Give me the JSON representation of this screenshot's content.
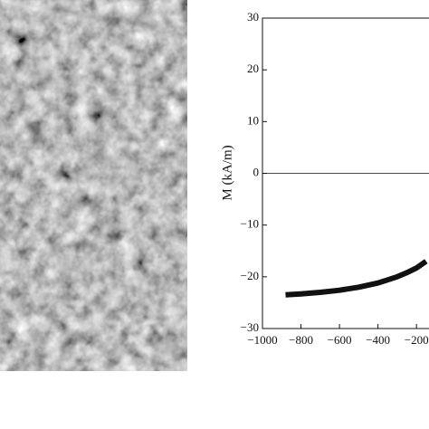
{
  "chart_data": {
    "type": "line",
    "y_label": "M (kA/m)",
    "x": [
      -880,
      -800,
      -700,
      -600,
      -500,
      -400,
      -300,
      -250,
      -200,
      -150
    ],
    "series": [
      {
        "color": "#111111",
        "values": [
          -23.5,
          -23.3,
          -23.0,
          -22.6,
          -22.0,
          -21.2,
          -20.0,
          -19.2,
          -18.3,
          -17.0
        ]
      }
    ],
    "xlim": [
      -1000,
      -135
    ],
    "ylim": [
      -30,
      30
    ],
    "xticks": [
      {
        "value": -1000,
        "label": "−1000"
      },
      {
        "value": -800,
        "label": "−800"
      },
      {
        "value": -600,
        "label": "−600"
      },
      {
        "value": -400,
        "label": "−400"
      },
      {
        "value": -200,
        "label": "−200"
      }
    ],
    "yticks": [
      {
        "value": -30,
        "label": "−30"
      },
      {
        "value": -20,
        "label": "−20"
      },
      {
        "value": -10,
        "label": "−10"
      },
      0,
      10,
      20,
      30
    ]
  }
}
